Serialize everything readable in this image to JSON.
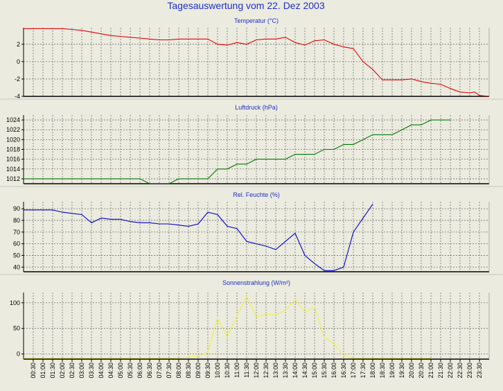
{
  "page_title": "Tagesauswertung vom 22. Dez 2003",
  "x_labels": [
    "00:30",
    "01:00",
    "01:30",
    "02:00",
    "02:30",
    "03:00",
    "03:30",
    "04:00",
    "04:30",
    "05:00",
    "05:30",
    "06:00",
    "06:30",
    "07:00",
    "07:30",
    "08:00",
    "08:30",
    "09:00",
    "09:30",
    "10:00",
    "10:30",
    "11:00",
    "11:30",
    "12:00",
    "12:30",
    "13:00",
    "13:30",
    "14:00",
    "14:30",
    "15:00",
    "15:30",
    "16:00",
    "16:30",
    "17:00",
    "17:30",
    "18:00",
    "18:30",
    "19:00",
    "19:30",
    "20:00",
    "20:30",
    "21:00",
    "21:30",
    "22:00",
    "22:30",
    "23:00",
    "23:30"
  ],
  "colors": {
    "background": "#ecebdf",
    "title": "#1e2ec8",
    "grid": "#707070",
    "temperature": "#e00000",
    "pressure": "#007800",
    "humidity": "#0000c8",
    "radiation": "#f0f040"
  },
  "chart_data": [
    {
      "type": "line",
      "title": "Temperatur (°C)",
      "series_color": "temperature",
      "ylim": [
        -4,
        3.9
      ],
      "yticks": [
        -4,
        -2,
        0,
        2
      ],
      "x": [
        "00:00",
        "00:30",
        "01:00",
        "01:30",
        "02:00",
        "02:30",
        "03:00",
        "03:30",
        "04:00",
        "04:30",
        "05:00",
        "05:30",
        "06:00",
        "06:30",
        "07:00",
        "07:30",
        "08:00",
        "08:30",
        "09:00",
        "09:30",
        "10:00",
        "10:30",
        "11:00",
        "11:30",
        "12:00",
        "12:30",
        "13:00",
        "13:30",
        "14:00",
        "14:30",
        "15:00",
        "15:30",
        "16:00",
        "16:30",
        "17:00",
        "17:30",
        "18:00",
        "18:30",
        "19:00",
        "19:30",
        "20:00",
        "20:30",
        "21:00",
        "21:30",
        "22:00",
        "22:30",
        "23:00",
        "23:15",
        "23:30",
        "24:00"
      ],
      "values": [
        3.8,
        3.8,
        3.8,
        3.8,
        3.8,
        3.7,
        3.6,
        3.4,
        3.2,
        3.0,
        2.9,
        2.8,
        2.7,
        2.6,
        2.5,
        2.5,
        2.6,
        2.6,
        2.6,
        2.6,
        2.0,
        1.9,
        2.2,
        2.0,
        2.5,
        2.6,
        2.6,
        2.8,
        2.2,
        1.9,
        2.4,
        2.5,
        2.0,
        1.7,
        1.5,
        0.0,
        -0.9,
        -2.1,
        -2.1,
        -2.1,
        -2.0,
        -2.3,
        -2.5,
        -2.6,
        -3.1,
        -3.5,
        -3.6,
        -3.5,
        -3.9,
        -4.0
      ]
    },
    {
      "type": "line",
      "title": "Luftdruck (hPa)",
      "series_color": "pressure",
      "ylim": [
        1011,
        1025
      ],
      "yticks": [
        1012,
        1014,
        1016,
        1018,
        1020,
        1022,
        1024
      ],
      "x": [
        "00:00",
        "01:00",
        "02:00",
        "03:00",
        "04:00",
        "05:00",
        "06:00",
        "06:30",
        "07:00",
        "07:30",
        "08:00",
        "08:30",
        "09:00",
        "09:30",
        "10:00",
        "10:30",
        "11:00",
        "11:30",
        "12:00",
        "12:30",
        "13:00",
        "13:30",
        "14:00",
        "14:30",
        "15:00",
        "15:30",
        "16:00",
        "16:30",
        "17:00",
        "17:30",
        "18:00",
        "18:30",
        "19:00",
        "19:30",
        "20:00",
        "20:30",
        "21:00",
        "21:30",
        "22:00"
      ],
      "values": [
        1012,
        1012,
        1012,
        1012,
        1012,
        1012,
        1012,
        1011,
        1011,
        1011,
        1012,
        1012,
        1012,
        1012,
        1014,
        1014,
        1015,
        1015,
        1016,
        1016,
        1016,
        1016,
        1017,
        1017,
        1017,
        1018,
        1018,
        1019,
        1019,
        1020,
        1021,
        1021,
        1021,
        1022,
        1023,
        1023,
        1024,
        1024,
        1024
      ]
    },
    {
      "type": "line",
      "title": "Rel. Feuchte (%)",
      "series_color": "humidity",
      "ylim": [
        36,
        96
      ],
      "yticks": [
        40,
        50,
        60,
        70,
        80,
        90
      ],
      "x": [
        "00:00",
        "00:30",
        "01:00",
        "01:30",
        "02:00",
        "02:30",
        "03:00",
        "03:30",
        "04:00",
        "04:30",
        "05:00",
        "05:30",
        "06:00",
        "06:30",
        "07:00",
        "07:30",
        "08:00",
        "08:30",
        "09:00",
        "09:30",
        "10:00",
        "10:30",
        "11:00",
        "11:30",
        "12:00",
        "12:30",
        "13:00",
        "13:30",
        "14:00",
        "14:30",
        "15:00",
        "15:30",
        "16:00",
        "16:30",
        "17:00",
        "17:30",
        "18:00"
      ],
      "values": [
        89,
        89,
        89,
        89,
        87,
        86,
        85,
        78,
        82,
        81,
        81,
        79,
        78,
        78,
        77,
        77,
        76,
        75,
        77,
        87,
        85,
        75,
        73,
        62,
        60,
        58,
        55,
        62,
        69,
        50,
        43,
        37,
        37,
        40,
        70,
        82,
        94
      ]
    },
    {
      "type": "line",
      "title": "Sonnenstrahlung (W/m²)",
      "series_color": "radiation",
      "ylim": [
        -10,
        120
      ],
      "yticks": [
        0,
        50,
        100
      ],
      "x": [
        "00:00",
        "01:00",
        "02:00",
        "03:00",
        "04:00",
        "05:00",
        "06:00",
        "07:00",
        "08:00",
        "09:00",
        "09:30",
        "10:00",
        "10:30",
        "11:00",
        "11:30",
        "12:00",
        "12:30",
        "13:00",
        "13:30",
        "14:00",
        "14:30",
        "15:00",
        "15:30",
        "16:00",
        "16:30",
        "17:00",
        "17:30",
        "18:00",
        "19:00",
        "20:00",
        "21:00"
      ],
      "values": [
        -8,
        -8,
        -8,
        -8,
        -8,
        -8,
        -8,
        -8,
        -8,
        -4,
        3,
        70,
        33,
        75,
        112,
        72,
        78,
        76,
        85,
        107,
        82,
        92,
        32,
        20,
        -3,
        -8,
        -8,
        -8,
        -8,
        -8,
        -8
      ]
    }
  ]
}
